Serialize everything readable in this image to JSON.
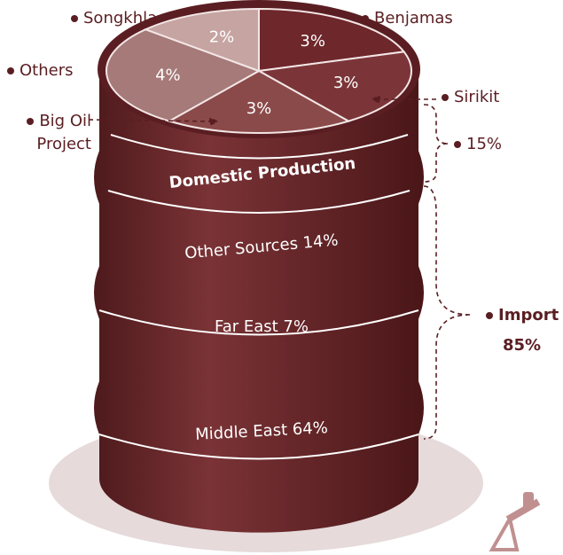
{
  "chart_data": {
    "type": "pie",
    "categories": [
      "Benjamas",
      "Sirikit",
      "Big Oil Project",
      "Others",
      "Songkhla"
    ],
    "values": [
      3,
      3,
      3,
      4,
      2
    ],
    "value_labels": [
      "3%",
      "3%",
      "3%",
      "4%",
      "2%"
    ],
    "colors": [
      "#6e272b",
      "#7b3538",
      "#8b4a4a",
      "#a57a78",
      "#c6a4a2"
    ]
  },
  "barrel": {
    "bands": [
      "Domestic Production",
      "Other Sources 14%",
      "Far East 7%",
      "Middle East 64%"
    ],
    "domestic_share": "15%",
    "import_label": "Import",
    "import_share": "85%"
  }
}
